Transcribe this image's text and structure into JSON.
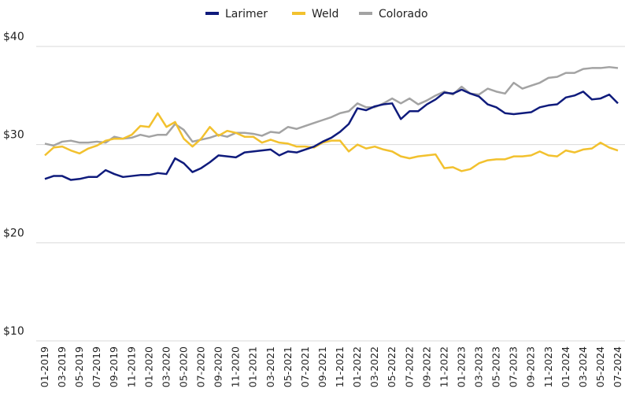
{
  "chart_data": {
    "type": "line",
    "categories": [
      "01-2019",
      null,
      "03-2019",
      null,
      "05-2019",
      null,
      "07-2019",
      null,
      "09-2019",
      null,
      "11-2019",
      null,
      "01-2020",
      null,
      "03-2020",
      null,
      "05-2020",
      null,
      "07-2020",
      null,
      "09-2020",
      null,
      "11-2020",
      null,
      "01-2021",
      null,
      "03-2021",
      null,
      "05-2021",
      null,
      "07-2021",
      null,
      "09-2021",
      null,
      "11-2021",
      null,
      "01-2022",
      null,
      "03-2022",
      null,
      "05-2022",
      null,
      "07-2022",
      null,
      "09-2022",
      null,
      "11-2022",
      null,
      "01-2023",
      null,
      "03-2023",
      null,
      "05-2023",
      null,
      "07-2023",
      null,
      "09-2023",
      null,
      "11-2023",
      null,
      "01-2024",
      null,
      "03-2024",
      null,
      "05-2024",
      null,
      "07-2024"
    ],
    "series": [
      {
        "name": "Larimer",
        "color": "#0f1b7c",
        "values": [
          26.5,
          26.8,
          26.8,
          26.4,
          26.5,
          26.7,
          26.7,
          27.4,
          27.0,
          26.7,
          26.8,
          26.9,
          26.9,
          27.1,
          27.0,
          28.6,
          28.1,
          27.2,
          27.6,
          28.2,
          28.9,
          28.8,
          28.7,
          29.2,
          29.3,
          29.4,
          29.5,
          28.9,
          29.3,
          29.2,
          29.5,
          29.8,
          30.3,
          30.7,
          31.3,
          32.1,
          33.7,
          33.5,
          33.9,
          34.1,
          34.2,
          32.6,
          33.4,
          33.4,
          34.1,
          34.6,
          35.3,
          35.2,
          35.6,
          35.2,
          34.9,
          34.1,
          33.8,
          33.2,
          33.1,
          33.2,
          33.3,
          33.8,
          34.0,
          34.1,
          34.8,
          35.0,
          35.4,
          34.6,
          34.7,
          35.1,
          34.2
        ]
      },
      {
        "name": "Weld",
        "color": "#f2c12e",
        "values": [
          28.9,
          29.7,
          29.8,
          29.4,
          29.1,
          29.6,
          29.9,
          30.4,
          30.6,
          30.6,
          31.0,
          31.9,
          31.8,
          33.2,
          31.8,
          32.3,
          30.6,
          29.8,
          30.6,
          31.8,
          30.9,
          31.4,
          31.2,
          30.8,
          30.8,
          30.2,
          30.5,
          30.2,
          30.1,
          29.8,
          29.8,
          29.7,
          30.2,
          30.4,
          30.4,
          29.3,
          30.0,
          29.6,
          29.8,
          29.5,
          29.3,
          28.8,
          28.6,
          28.8,
          28.9,
          29.0,
          27.6,
          27.7,
          27.3,
          27.5,
          28.1,
          28.4,
          28.5,
          28.5,
          28.8,
          28.8,
          28.9,
          29.3,
          28.9,
          28.8,
          29.4,
          29.2,
          29.5,
          29.6,
          30.2,
          29.7,
          29.4
        ]
      },
      {
        "name": "Colorado",
        "color": "#a3a3a3",
        "values": [
          30.1,
          29.9,
          30.3,
          30.4,
          30.2,
          30.2,
          30.3,
          30.2,
          30.8,
          30.6,
          30.7,
          31.0,
          30.8,
          31.0,
          31.0,
          32.1,
          31.5,
          30.3,
          30.5,
          30.7,
          31.0,
          30.8,
          31.2,
          31.2,
          31.1,
          30.9,
          31.3,
          31.2,
          31.8,
          31.6,
          31.9,
          32.2,
          32.5,
          32.8,
          33.2,
          33.4,
          34.2,
          33.8,
          33.8,
          34.2,
          34.7,
          34.2,
          34.7,
          34.1,
          34.5,
          35.0,
          35.4,
          35.1,
          35.9,
          35.2,
          35.1,
          35.7,
          35.4,
          35.2,
          36.3,
          35.7,
          36.0,
          36.3,
          36.8,
          36.9,
          37.3,
          37.3,
          37.7,
          37.8,
          37.8,
          37.9,
          37.8
        ]
      }
    ],
    "ylim": [
      10,
      40
    ],
    "yticks": [
      {
        "value": 10,
        "label": "$10"
      },
      {
        "value": 20,
        "label": "$20"
      },
      {
        "value": 30,
        "label": "$30"
      },
      {
        "value": 40,
        "label": "$40"
      }
    ],
    "grid": true,
    "legend": "top"
  }
}
